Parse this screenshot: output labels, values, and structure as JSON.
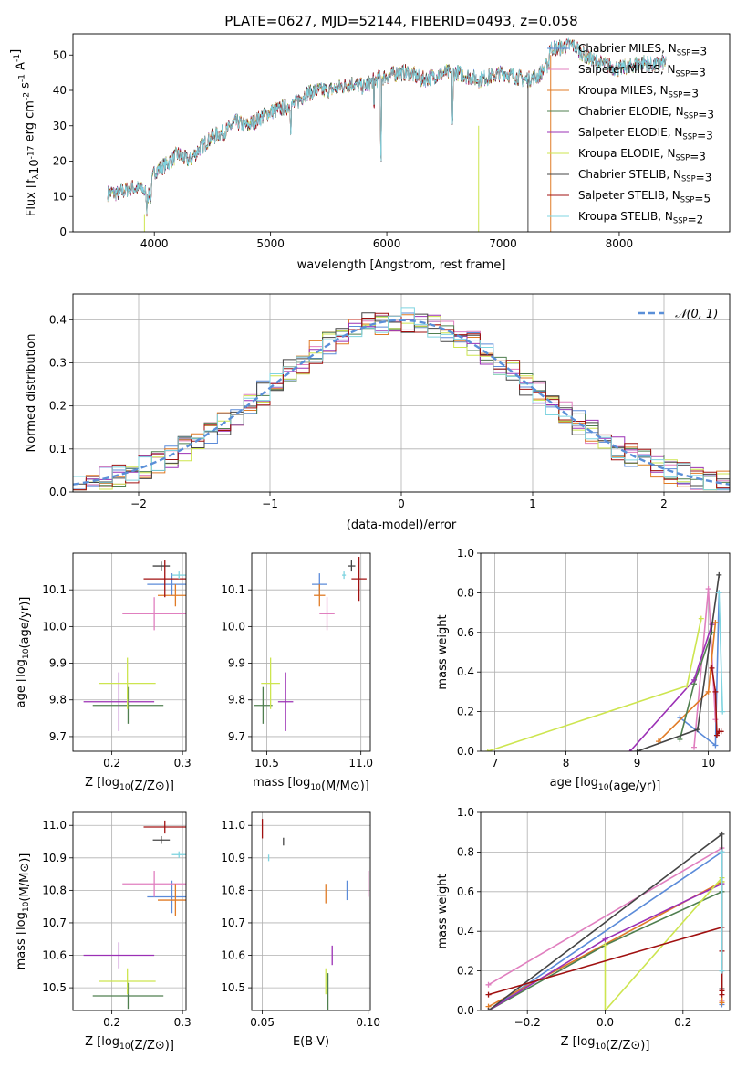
{
  "figure_title": "PLATE=0627, MJD=52144, FIBERID=0493, z=0.058",
  "colors": {
    "grid": "#b0b0b0",
    "axis": "#000000",
    "gaussian": "#5a8fd8"
  },
  "chart_data": [
    {
      "id": "spectrum",
      "type": "line",
      "xlabel": "wavelength [Angstrom, rest frame]",
      "ylabel": "Flux [f_λ10^-17 erg cm^-2 s^-1 A^-1]",
      "xlim": [
        3300,
        8950
      ],
      "ylim": [
        0,
        56
      ],
      "xticks": [
        4000,
        5000,
        6000,
        7000,
        8000
      ],
      "yticks": [
        0,
        10,
        20,
        30,
        40,
        50
      ],
      "grid": false,
      "legend_position": "top-right",
      "continuum": {
        "x": [
          3600,
          3700,
          3800,
          3900,
          3950,
          4000,
          4100,
          4200,
          4300,
          4400,
          4500,
          4600,
          4700,
          4800,
          4900,
          5000,
          5100,
          5200,
          5300,
          5400,
          5500,
          5600,
          5700,
          5800,
          5900,
          6000,
          6100,
          6200,
          6300,
          6400,
          6500,
          6600,
          6700,
          6800,
          6900,
          7000,
          7100,
          7200,
          7300,
          7400
        ],
        "y": [
          11,
          11,
          12.5,
          12,
          10,
          17,
          19,
          22,
          20,
          24,
          27,
          28,
          31,
          30,
          32,
          34,
          35,
          36,
          39,
          40,
          40,
          41,
          42,
          41,
          43,
          44,
          45,
          45,
          43,
          44,
          45,
          45,
          44,
          43,
          44,
          45,
          44,
          43,
          44,
          48
        ]
      },
      "tail_x": [
        7400,
        7500,
        7600,
        7700,
        7800,
        7900,
        8000,
        8100,
        8200,
        8300,
        8400
      ],
      "tail_y": [
        52,
        52,
        53,
        50,
        48,
        47,
        46,
        47,
        48,
        47,
        48
      ],
      "legend_labels": [
        "Chabrier MILES, N_SSP=3",
        "Salpeter MILES, N_SSP=3",
        "Kroupa MILES, N_SSP=3",
        "Chabrier ELODIE, N_SSP=3",
        "Salpeter ELODIE, N_SSP=3",
        "Kroupa ELODIE, N_SSP=3",
        "Chabrier STELIB, N_SSP=3",
        "Salpeter STELIB, N_SSP=5",
        "Kroupa STELIB, N_SSP=2"
      ],
      "dropouts": [
        {
          "model": 5,
          "x": 6790,
          "ytop": 30
        },
        {
          "model": 6,
          "x": 7215,
          "ytop": 43
        },
        {
          "model": 2,
          "x": 7410,
          "ytop": 50
        },
        {
          "model": 5,
          "x": 3915,
          "ytop": 5
        }
      ],
      "lines_absorption": [
        {
          "x": 5950,
          "depth": 22
        },
        {
          "x": 6565,
          "depth": 14
        },
        {
          "x": 5890,
          "depth": 8
        },
        {
          "x": 5175,
          "depth": 6
        },
        {
          "x": 3935,
          "depth": 4
        },
        {
          "x": 3970,
          "depth": 4
        }
      ]
    },
    {
      "id": "residuals",
      "type": "line",
      "xlabel": "(data-model)/error",
      "ylabel": "Normed distribution",
      "xlim": [
        -2.5,
        2.5
      ],
      "ylim": [
        0,
        0.46
      ],
      "xticks": [
        -2,
        -1,
        0,
        1,
        2
      ],
      "yticks": [
        0.0,
        0.1,
        0.2,
        0.3,
        0.4
      ],
      "grid": true,
      "legend_position": "top-right",
      "gaussian_label": "𝒩(0, 1)",
      "bin_width": 0.1
    },
    {
      "id": "age-vs-Z",
      "type": "scatter",
      "xlabel": "Z [log10(Z/Z⊙)]",
      "ylabel": "age  [log10(age/yr)]",
      "xlim": [
        0.145,
        0.305
      ],
      "ylim": [
        9.66,
        10.2
      ],
      "xticks": [
        0.2,
        0.3
      ],
      "yticks": [
        9.7,
        9.8,
        9.9,
        10.0,
        10.1
      ],
      "grid": true,
      "points": [
        {
          "model": 0,
          "x": 0.285,
          "y": 10.115,
          "xerr": 0.035,
          "yerr": 0.03
        },
        {
          "model": 1,
          "x": 0.26,
          "y": 10.035,
          "xerr": 0.045,
          "yerr": 0.045
        },
        {
          "model": 2,
          "x": 0.29,
          "y": 10.085,
          "xerr": 0.025,
          "yerr": 0.03
        },
        {
          "model": 3,
          "x": 0.223,
          "y": 9.785,
          "xerr": 0.05,
          "yerr": 0.05
        },
        {
          "model": 4,
          "x": 0.21,
          "y": 9.795,
          "xerr": 0.05,
          "yerr": 0.08
        },
        {
          "model": 5,
          "x": 0.222,
          "y": 9.845,
          "xerr": 0.04,
          "yerr": 0.07
        },
        {
          "model": 6,
          "x": 0.27,
          "y": 10.165,
          "xerr": 0.012,
          "yerr": 0.012
        },
        {
          "model": 7,
          "x": 0.275,
          "y": 10.13,
          "xerr": 0.03,
          "yerr": 0.05
        },
        {
          "model": 8,
          "x": 0.295,
          "y": 10.14,
          "xerr": 0.01,
          "yerr": 0.01
        }
      ]
    },
    {
      "id": "age-vs-mass",
      "type": "scatter",
      "xlabel": "mass [log10(M/M⊙)]",
      "ylabel": "",
      "xlim": [
        10.42,
        11.05
      ],
      "ylim": [
        9.66,
        10.2
      ],
      "xticks": [
        10.5,
        11.0
      ],
      "yticks": [
        9.7,
        9.8,
        9.9,
        10.0,
        10.1
      ],
      "grid": true,
      "points": [
        {
          "model": 0,
          "x": 10.78,
          "y": 10.115,
          "xerr": 0.04,
          "yerr": 0.03
        },
        {
          "model": 1,
          "x": 10.82,
          "y": 10.035,
          "xerr": 0.04,
          "yerr": 0.045
        },
        {
          "model": 2,
          "x": 10.78,
          "y": 10.085,
          "xerr": 0.03,
          "yerr": 0.03
        },
        {
          "model": 3,
          "x": 10.48,
          "y": 9.785,
          "xerr": 0.05,
          "yerr": 0.05
        },
        {
          "model": 4,
          "x": 10.6,
          "y": 9.795,
          "xerr": 0.04,
          "yerr": 0.08
        },
        {
          "model": 5,
          "x": 10.52,
          "y": 9.845,
          "xerr": 0.05,
          "yerr": 0.07
        },
        {
          "model": 6,
          "x": 10.95,
          "y": 10.165,
          "xerr": 0.02,
          "yerr": 0.015
        },
        {
          "model": 7,
          "x": 10.99,
          "y": 10.13,
          "xerr": 0.04,
          "yerr": 0.06
        },
        {
          "model": 8,
          "x": 10.91,
          "y": 10.14,
          "xerr": 0.01,
          "yerr": 0.01
        }
      ]
    },
    {
      "id": "weight-vs-age",
      "type": "line",
      "xlabel": "age  [log10(age/yr)]",
      "ylabel": "mass weight",
      "xlim": [
        6.8,
        10.3
      ],
      "ylim": [
        0,
        1.0
      ],
      "xticks": [
        7,
        8,
        9,
        10
      ],
      "yticks": [
        0.0,
        0.2,
        0.4,
        0.6,
        0.8,
        1.0
      ],
      "grid": true,
      "series": [
        {
          "model": 0,
          "x": [
            9.6,
            10.1,
            10.15
          ],
          "y": [
            0.17,
            0.03,
            0.8
          ]
        },
        {
          "model": 1,
          "x": [
            9.8,
            10.0,
            10.1
          ],
          "y": [
            0.02,
            0.82,
            0.16
          ]
        },
        {
          "model": 2,
          "x": [
            9.3,
            10.0,
            10.1
          ],
          "y": [
            0.05,
            0.3,
            0.65
          ]
        },
        {
          "model": 3,
          "x": [
            9.6,
            9.8,
            10.05
          ],
          "y": [
            0.06,
            0.34,
            0.6
          ]
        },
        {
          "model": 4,
          "x": [
            8.9,
            9.8,
            10.05
          ],
          "y": [
            0.0,
            0.36,
            0.64
          ]
        },
        {
          "model": 5,
          "x": [
            6.9,
            9.7,
            9.9
          ],
          "y": [
            0.0,
            0.33,
            0.67
          ]
        },
        {
          "model": 6,
          "x": [
            9.0,
            9.85,
            10.15
          ],
          "y": [
            0.0,
            0.11,
            0.89
          ]
        },
        {
          "model": 7,
          "x": [
            10.05,
            10.1,
            10.12,
            10.15,
            10.18
          ],
          "y": [
            0.42,
            0.3,
            0.08,
            0.1,
            0.1
          ]
        },
        {
          "model": 8,
          "x": [
            10.15,
            10.2
          ],
          "y": [
            0.8,
            0.2
          ]
        }
      ]
    },
    {
      "id": "mass-vs-Z",
      "type": "scatter",
      "xlabel": "Z [log10(Z/Z⊙)]",
      "ylabel": "mass [log10(M/M⊙)]",
      "xlim": [
        0.145,
        0.305
      ],
      "ylim": [
        10.43,
        11.04
      ],
      "xticks": [
        0.2,
        0.3
      ],
      "yticks": [
        10.5,
        10.6,
        10.7,
        10.8,
        10.9,
        11.0
      ],
      "grid": true,
      "points": [
        {
          "model": 0,
          "x": 0.285,
          "y": 10.78,
          "xerr": 0.035,
          "yerr": 0.05
        },
        {
          "model": 1,
          "x": 0.26,
          "y": 10.82,
          "xerr": 0.045,
          "yerr": 0.04
        },
        {
          "model": 2,
          "x": 0.29,
          "y": 10.77,
          "xerr": 0.025,
          "yerr": 0.05
        },
        {
          "model": 3,
          "x": 0.223,
          "y": 10.475,
          "xerr": 0.05,
          "yerr": 0.04
        },
        {
          "model": 4,
          "x": 0.21,
          "y": 10.6,
          "xerr": 0.05,
          "yerr": 0.04
        },
        {
          "model": 5,
          "x": 0.222,
          "y": 10.52,
          "xerr": 0.04,
          "yerr": 0.04
        },
        {
          "model": 6,
          "x": 0.27,
          "y": 10.955,
          "xerr": 0.012,
          "yerr": 0.012
        },
        {
          "model": 7,
          "x": 0.275,
          "y": 10.995,
          "xerr": 0.03,
          "yerr": 0.02
        },
        {
          "model": 8,
          "x": 0.295,
          "y": 10.91,
          "xerr": 0.01,
          "yerr": 0.01
        }
      ]
    },
    {
      "id": "mass-vs-EBV",
      "type": "scatter",
      "xlabel": "E(B-V)",
      "ylabel": "",
      "xlim": [
        0.045,
        0.101
      ],
      "ylim": [
        10.43,
        11.04
      ],
      "xticks": [
        0.05,
        0.1
      ],
      "yticks": [
        10.5,
        10.6,
        10.7,
        10.8,
        10.9,
        11.0
      ],
      "grid": true,
      "points": [
        {
          "model": 0,
          "x": 0.09,
          "y": 10.8,
          "xerr": 0.0,
          "yerr": 0.03
        },
        {
          "model": 1,
          "x": 0.1,
          "y": 10.82,
          "xerr": 0.0,
          "yerr": 0.04
        },
        {
          "model": 2,
          "x": 0.08,
          "y": 10.79,
          "xerr": 0.0,
          "yerr": 0.03
        },
        {
          "model": 3,
          "x": 0.081,
          "y": 10.475,
          "xerr": 0.0,
          "yerr": 0.07
        },
        {
          "model": 4,
          "x": 0.083,
          "y": 10.6,
          "xerr": 0.0,
          "yerr": 0.03
        },
        {
          "model": 5,
          "x": 0.08,
          "y": 10.52,
          "xerr": 0.0,
          "yerr": 0.04
        },
        {
          "model": 6,
          "x": 0.06,
          "y": 10.95,
          "xerr": 0.0,
          "yerr": 0.012
        },
        {
          "model": 7,
          "x": 0.05,
          "y": 10.99,
          "xerr": 0.0,
          "yerr": 0.03
        },
        {
          "model": 8,
          "x": 0.053,
          "y": 10.9,
          "xerr": 0.0,
          "yerr": 0.01
        }
      ]
    },
    {
      "id": "weight-vs-Z",
      "type": "line",
      "xlabel": "Z [log10(Z/Z⊙)]",
      "ylabel": "mass weight",
      "xlim": [
        -0.32,
        0.32
      ],
      "ylim": [
        0,
        1.0
      ],
      "xticks": [
        -0.2,
        0.0,
        0.2
      ],
      "yticks": [
        0.0,
        0.2,
        0.4,
        0.6,
        0.8,
        1.0
      ],
      "grid": true,
      "series": [
        {
          "model": 0,
          "x": [
            -0.3,
            0.3,
            0.3
          ],
          "y": [
            0.0,
            0.8,
            0.03
          ]
        },
        {
          "model": 1,
          "x": [
            -0.3,
            0.3,
            0.3
          ],
          "y": [
            0.13,
            0.82,
            0.05
          ]
        },
        {
          "model": 2,
          "x": [
            -0.3,
            0.3,
            0.3
          ],
          "y": [
            0.02,
            0.65,
            0.04
          ]
        },
        {
          "model": 3,
          "x": [
            -0.3,
            0.0,
            0.3
          ],
          "y": [
            0.0,
            0.33,
            0.6
          ]
        },
        {
          "model": 4,
          "x": [
            -0.3,
            0.0,
            0.3
          ],
          "y": [
            0.0,
            0.36,
            0.64
          ]
        },
        {
          "model": 5,
          "x": [
            0.0,
            0.0,
            0.3,
            0.3
          ],
          "y": [
            0.33,
            0.0,
            0.67,
            0.65
          ]
        },
        {
          "model": 6,
          "x": [
            -0.3,
            0.3,
            0.3
          ],
          "y": [
            0.0,
            0.89,
            0.11
          ]
        },
        {
          "model": 7,
          "x": [
            -0.3,
            0.3,
            0.3,
            0.3,
            0.3
          ],
          "y": [
            0.08,
            0.42,
            0.3,
            0.1,
            0.08
          ]
        },
        {
          "model": 8,
          "x": [
            0.3,
            0.3
          ],
          "y": [
            0.8,
            0.2
          ]
        }
      ]
    }
  ],
  "model_colors": [
    "#5b8bd9",
    "#e07fbf",
    "#e07b26",
    "#4f7f4f",
    "#9b30b5",
    "#cde54f",
    "#444444",
    "#a01010",
    "#7fd4e0"
  ]
}
